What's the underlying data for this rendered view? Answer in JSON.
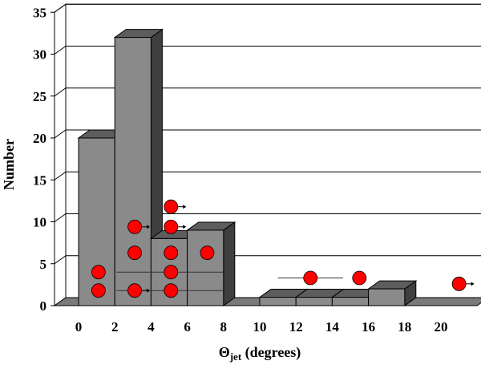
{
  "chart_data": {
    "type": "bar",
    "style": "3d",
    "xlabel": {
      "symbol": "Θ",
      "subscript": "jet",
      "rest": " (degrees)"
    },
    "ylabel": "Number",
    "xlim": [
      0,
      22
    ],
    "ylim": [
      0,
      35
    ],
    "x_ticks": [
      0,
      2,
      4,
      6,
      8,
      10,
      12,
      14,
      16,
      18,
      20
    ],
    "y_ticks": [
      0,
      5,
      10,
      15,
      20,
      25,
      30,
      35
    ],
    "grid": "horizontal",
    "bar_width": 2,
    "bars": [
      {
        "start": 0,
        "value": 20
      },
      {
        "start": 2,
        "value": 32
      },
      {
        "start": 4,
        "value": 8
      },
      {
        "start": 6,
        "value": 9
      },
      {
        "start": 8,
        "value": 0
      },
      {
        "start": 10,
        "value": 1
      },
      {
        "start": 12,
        "value": 1
      },
      {
        "start": 14,
        "value": 1
      },
      {
        "start": 16,
        "value": 2
      },
      {
        "start": 18,
        "value": 0
      },
      {
        "start": 20,
        "value": 0
      }
    ],
    "points": [
      {
        "x": 1.1,
        "y": 1.8,
        "arrow": false
      },
      {
        "x": 1.1,
        "y": 4.0,
        "arrow": false
      },
      {
        "x": 3.1,
        "y": 1.8,
        "arrow": true
      },
      {
        "x": 3.1,
        "y": 6.3,
        "arrow": false
      },
      {
        "x": 3.1,
        "y": 9.4,
        "arrow": true
      },
      {
        "x": 5.1,
        "y": 1.8,
        "arrow": false
      },
      {
        "x": 5.1,
        "y": 4.0,
        "arrow": false
      },
      {
        "x": 5.1,
        "y": 6.3,
        "arrow": false
      },
      {
        "x": 5.1,
        "y": 9.4,
        "arrow": true
      },
      {
        "x": 5.1,
        "y": 11.8,
        "arrow": true
      },
      {
        "x": 7.1,
        "y": 6.3,
        "arrow": false
      },
      {
        "x": 12.8,
        "y": 3.3,
        "arrow": false
      },
      {
        "x": 15.5,
        "y": 3.3,
        "arrow": false
      },
      {
        "x": 21.0,
        "y": 2.6,
        "arrow": true
      }
    ],
    "error_bars": [
      {
        "x_from": 2.1,
        "x_to": 8.0,
        "y": 1.8
      },
      {
        "x_from": 2.1,
        "x_to": 8.0,
        "y": 4.0
      },
      {
        "x_from": 11.0,
        "x_to": 14.6,
        "y": 3.3
      }
    ],
    "colors": {
      "bar_front": "#8a8a8a",
      "bar_top": "#5d5d5d",
      "bar_side": "#3f3f3f",
      "back_wall": "#ffffff",
      "floor": "#7a7a7a",
      "point": "#ff0000"
    }
  }
}
